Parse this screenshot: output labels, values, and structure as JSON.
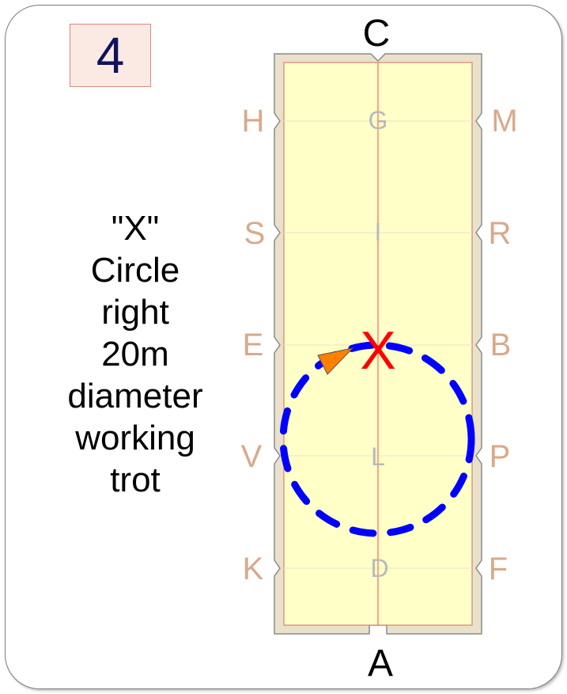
{
  "step": {
    "number": "4"
  },
  "instruction": {
    "lines": [
      "\"X\"",
      "Circle",
      "right",
      "20m",
      "diameter",
      "working",
      "trot"
    ]
  },
  "arena": {
    "end_letters": {
      "top": "C",
      "bottom": "A"
    },
    "left_letters": [
      "H",
      "S",
      "E",
      "V",
      "K"
    ],
    "right_letters": [
      "M",
      "R",
      "B",
      "P",
      "F"
    ],
    "center_letters": [
      "G",
      "I",
      "L",
      "D"
    ],
    "marker": "X",
    "colors": {
      "surround": "#e9e1cb",
      "surface": "#ffffc8",
      "centerline": "#ff6666",
      "outer_letter": "#d9a98a",
      "inner_letter": "#b9b9b9",
      "path": "#0000ff",
      "marker": "#ff0000",
      "direction_arrow": "#ff8000"
    }
  },
  "figure": {
    "movement": "circle",
    "direction": "right",
    "diameter_m": 20,
    "start_letter": "X"
  }
}
